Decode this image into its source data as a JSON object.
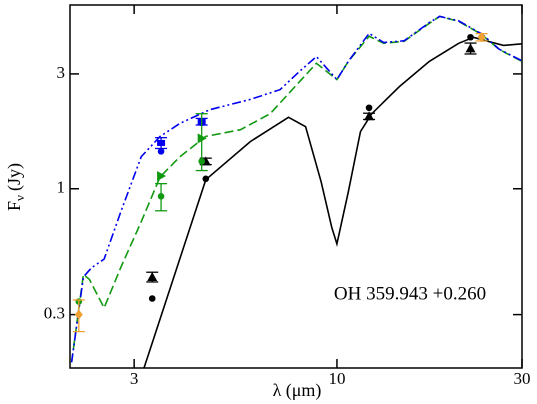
{
  "chart_data": {
    "type": "line",
    "xlabel": "λ (μm)",
    "ylabel": "F",
    "ylabel_sub": "ν",
    "ylabel_unit": "(Jy)",
    "annotation": "OH 359.943 +0.260",
    "xlog": true,
    "ylog": true,
    "xlim": [
      2.05,
      30
    ],
    "ylim": [
      0.18,
      5.8
    ],
    "xticks": [
      3,
      10,
      30
    ],
    "yticks": [
      0.3,
      1,
      3
    ],
    "series": [
      {
        "style": "line",
        "color": "#000000",
        "dash": "solid",
        "x": [
          3.18,
          4.59,
          5.98,
          7.5,
          8.3,
          9.1,
          9.7,
          10,
          10.7,
          11.5,
          12.3,
          14.5,
          17.3,
          20.6,
          22.5,
          24.6,
          26.9,
          30
        ],
        "values": [
          0.18,
          1.09,
          1.57,
          1.98,
          1.81,
          1.07,
          0.69,
          0.59,
          0.97,
          1.73,
          2.05,
          2.66,
          3.38,
          4.02,
          4.26,
          4.09,
          3.94,
          4.0
        ]
      },
      {
        "style": "line",
        "color": "#119911",
        "dash": "dashed",
        "x": [
          2.07,
          2.22,
          2.3,
          2.51,
          2.77,
          3.13,
          3.5,
          3.94,
          4.59,
          5.64,
          6.73,
          7.8,
          8.85,
          10,
          10.7,
          12.1,
          13.2,
          14.9,
          17.3,
          18.4,
          20.6,
          23.6,
          26.2,
          30
        ],
        "values": [
          0.19,
          0.44,
          0.42,
          0.32,
          0.47,
          0.73,
          1.12,
          1.36,
          1.65,
          1.76,
          2.05,
          2.66,
          3.32,
          2.84,
          3.38,
          4.3,
          4.02,
          4.1,
          4.87,
          5.2,
          4.96,
          4.38,
          3.79,
          3.38
        ]
      },
      {
        "style": "line",
        "color": "#0000ee",
        "dash": "dashdotdot",
        "x": [
          2.07,
          2.22,
          2.33,
          2.51,
          2.77,
          3.13,
          3.5,
          3.94,
          4.7,
          5.98,
          7.13,
          8.0,
          8.85,
          10,
          10.7,
          12.1,
          13.2,
          14.9,
          17.3,
          18.4,
          20.6,
          23.6,
          26.2,
          30
        ],
        "values": [
          0.19,
          0.43,
          0.47,
          0.51,
          0.8,
          1.36,
          1.65,
          1.87,
          2.13,
          2.35,
          2.58,
          3.07,
          3.54,
          2.84,
          3.38,
          4.42,
          4.05,
          4.12,
          4.9,
          5.2,
          4.98,
          4.4,
          3.8,
          3.4
        ]
      },
      {
        "style": "marker",
        "marker": "circle",
        "color": "#000000",
        "x": [
          3.34,
          4.59,
          12.1,
          22.1
        ],
        "values": [
          0.35,
          1.1,
          2.17,
          4.26
        ],
        "errors": [
          0,
          0,
          0,
          0
        ]
      },
      {
        "style": "marker",
        "marker": "triangle-up",
        "color": "#000000",
        "x": [
          3.34,
          4.59,
          12.1,
          22.1
        ],
        "values": [
          0.43,
          1.3,
          2.0,
          3.83
        ],
        "errors": [
          0.02,
          0.04,
          0.06,
          0.2
        ]
      },
      {
        "style": "marker",
        "marker": "square",
        "color": "#0000ee",
        "x": [
          3.52,
          4.48
        ],
        "values": [
          1.55,
          1.9
        ],
        "errors": [
          0.08,
          0.06
        ]
      },
      {
        "style": "marker",
        "marker": "circle",
        "color": "#0000ee",
        "x": [
          3.52,
          4.48
        ],
        "values": [
          1.43,
          1.88
        ],
        "errors": [
          0,
          0
        ]
      },
      {
        "style": "marker",
        "marker": "circle",
        "color": "#119911",
        "x": [
          2.16,
          3.52,
          4.48,
          23.6
        ],
        "values": [
          0.34,
          0.93,
          1.3,
          4.26
        ],
        "errors": [
          0,
          0.12,
          0,
          0
        ]
      },
      {
        "style": "marker",
        "marker": "triangle-right",
        "color": "#119911",
        "x": [
          3.52,
          4.48
        ],
        "values": [
          1.13,
          1.62
        ],
        "errors": [
          0,
          0.43
        ]
      },
      {
        "style": "marker",
        "marker": "diamond",
        "color": "#f0a030",
        "x": [
          2.16,
          23.6
        ],
        "values": [
          0.3,
          4.26
        ],
        "errors": [
          0.045,
          0.15
        ]
      }
    ]
  }
}
